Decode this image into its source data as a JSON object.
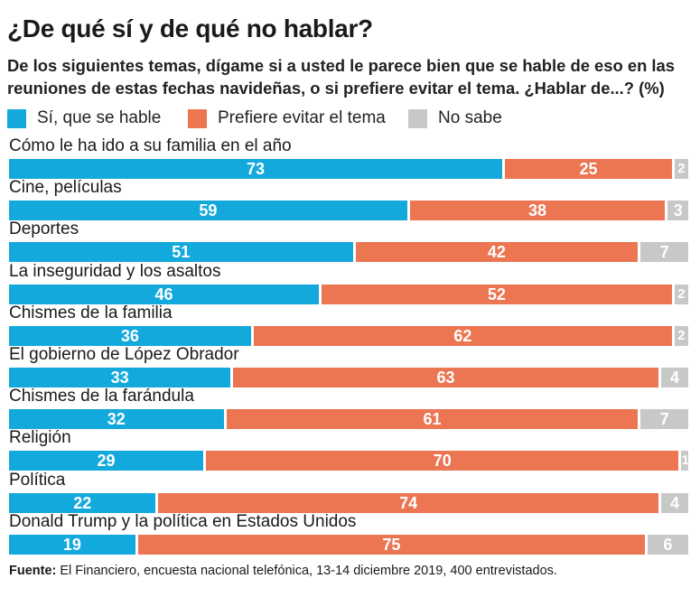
{
  "title": "¿De qué sí y de qué no hablar?",
  "subtitle": "De los siguientes temas, dígame si a usted le parece bien que se hable de eso en las reuniones de estas fechas navideñas, o si prefiere evitar el tema. ¿Hablar de...? (%)",
  "footer": {
    "label": "Fuente:",
    "text": " El Financiero, encuesta nacional telefónica, 13-14 diciembre 2019, 400 entrevistados."
  },
  "colors": {
    "si": "#14a9dc",
    "evitar": "#ec7552",
    "no_sabe": "#c8c8c8"
  },
  "chart_data": {
    "type": "bar",
    "orientation": "horizontal",
    "stacked": true,
    "categories": [
      "Cómo le ha ido a su familia en el año",
      "Cine, películas",
      "Deportes",
      "La inseguridad y los asaltos",
      "Chismes de la familia",
      "El gobierno de López Obrador",
      "Chismes de la farándula",
      "Religión",
      "Política",
      "Donald Trump y la política en Estados Unidos"
    ],
    "series": [
      {
        "name": "Sí, que se hable",
        "values": [
          73,
          59,
          51,
          46,
          36,
          33,
          32,
          29,
          22,
          19
        ]
      },
      {
        "name": "Prefiere evitar el tema",
        "values": [
          25,
          38,
          42,
          52,
          62,
          63,
          61,
          70,
          74,
          75
        ]
      },
      {
        "name": "No sabe",
        "values": [
          2,
          3,
          7,
          2,
          2,
          4,
          7,
          1,
          4,
          6
        ]
      }
    ],
    "legend_position": "top-left",
    "grid": false
  }
}
